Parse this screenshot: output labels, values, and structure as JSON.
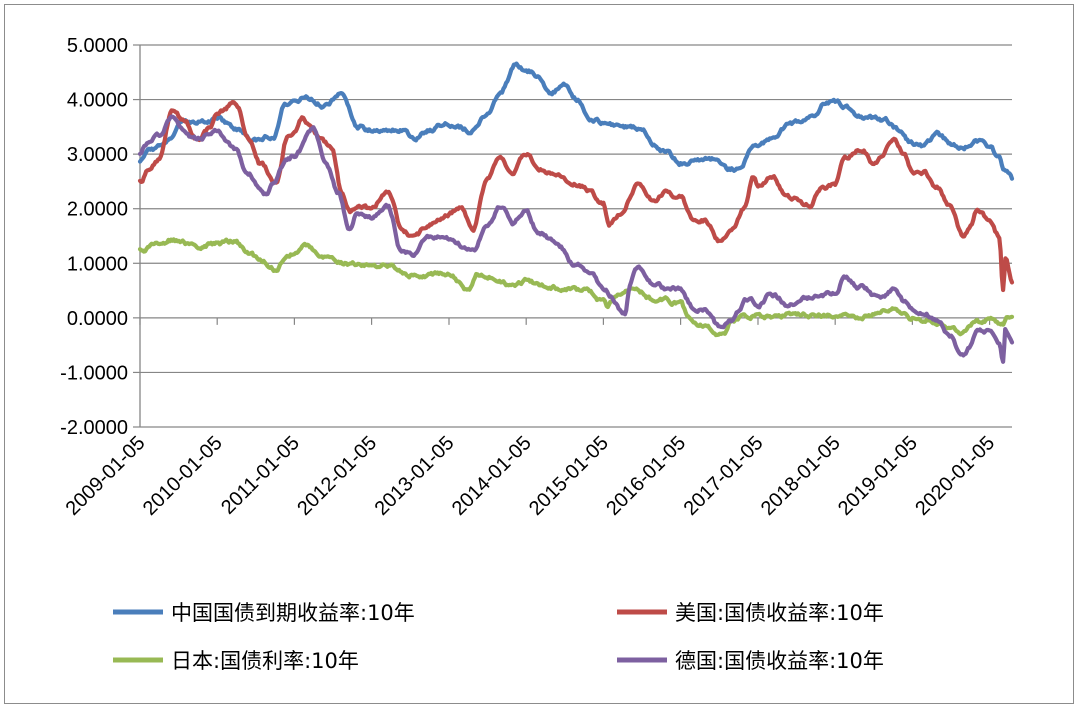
{
  "chart_data": {
    "type": "line",
    "title": "",
    "xlabel": "",
    "ylabel": "",
    "ylim": [
      -2,
      5
    ],
    "yticks": [
      "5.0000",
      "4.0000",
      "3.0000",
      "2.0000",
      "1.0000",
      "0.0000",
      "-1.0000",
      "-2.0000"
    ],
    "xlim": [
      "2009-01-05",
      "2020-04-20"
    ],
    "xticks": [
      "2009-01-05",
      "2010-01-05",
      "2011-01-05",
      "2012-01-05",
      "2013-01-05",
      "2014-01-05",
      "2015-01-05",
      "2016-01-05",
      "2017-01-05",
      "2018-01-05",
      "2019-01-05",
      "2020-01-05"
    ],
    "grid": true,
    "legend_position": "bottom",
    "series": [
      {
        "name": "中国国债到期收益率:10年",
        "color": "#4a7ebb",
        "points": [
          [
            "2009-01-05",
            2.85
          ],
          [
            "2009-03-01",
            3.05
          ],
          [
            "2009-06-01",
            3.25
          ],
          [
            "2009-08-01",
            3.55
          ],
          [
            "2009-11-01",
            3.6
          ],
          [
            "2010-01-05",
            3.65
          ],
          [
            "2010-04-01",
            3.45
          ],
          [
            "2010-07-01",
            3.25
          ],
          [
            "2010-10-01",
            3.35
          ],
          [
            "2010-11-20",
            3.95
          ],
          [
            "2011-01-05",
            3.95
          ],
          [
            "2011-03-01",
            4.05
          ],
          [
            "2011-06-01",
            3.9
          ],
          [
            "2011-08-25",
            4.1
          ],
          [
            "2011-11-01",
            3.5
          ],
          [
            "2012-01-05",
            3.45
          ],
          [
            "2012-04-01",
            3.45
          ],
          [
            "2012-06-01",
            3.45
          ],
          [
            "2012-07-15",
            3.3
          ],
          [
            "2012-10-01",
            3.45
          ],
          [
            "2013-01-05",
            3.55
          ],
          [
            "2013-05-01",
            3.45
          ],
          [
            "2013-07-01",
            3.7
          ],
          [
            "2013-09-01",
            4.1
          ],
          [
            "2013-11-20",
            4.65
          ],
          [
            "2014-01-05",
            4.55
          ],
          [
            "2014-03-01",
            4.45
          ],
          [
            "2014-05-01",
            4.15
          ],
          [
            "2014-07-01",
            4.25
          ],
          [
            "2014-09-01",
            4.0
          ],
          [
            "2014-11-01",
            3.7
          ],
          [
            "2015-01-05",
            3.6
          ],
          [
            "2015-04-01",
            3.5
          ],
          [
            "2015-07-01",
            3.5
          ],
          [
            "2015-09-01",
            3.2
          ],
          [
            "2015-11-01",
            3.05
          ],
          [
            "2016-01-05",
            2.85
          ],
          [
            "2016-04-01",
            2.9
          ],
          [
            "2016-07-01",
            2.9
          ],
          [
            "2016-08-15",
            2.75
          ],
          [
            "2016-10-20",
            2.7
          ],
          [
            "2016-12-01",
            3.1
          ],
          [
            "2017-01-05",
            3.15
          ],
          [
            "2017-04-01",
            3.35
          ],
          [
            "2017-06-01",
            3.55
          ],
          [
            "2017-08-01",
            3.6
          ],
          [
            "2017-10-01",
            3.75
          ],
          [
            "2017-11-20",
            3.95
          ],
          [
            "2018-01-05",
            3.95
          ],
          [
            "2018-03-01",
            3.85
          ],
          [
            "2018-06-01",
            3.65
          ],
          [
            "2018-09-01",
            3.6
          ],
          [
            "2018-11-01",
            3.45
          ],
          [
            "2019-01-05",
            3.2
          ],
          [
            "2019-03-01",
            3.15
          ],
          [
            "2019-05-01",
            3.35
          ],
          [
            "2019-07-01",
            3.2
          ],
          [
            "2019-09-01",
            3.1
          ],
          [
            "2019-11-01",
            3.25
          ],
          [
            "2020-01-05",
            3.15
          ],
          [
            "2020-02-15",
            2.95
          ],
          [
            "2020-03-15",
            2.7
          ],
          [
            "2020-04-20",
            2.55
          ]
        ]
      },
      {
        "name": "美国:国债收益率:10年",
        "color": "#be4b48",
        "points": [
          [
            "2009-01-05",
            2.5
          ],
          [
            "2009-02-15",
            2.7
          ],
          [
            "2009-04-01",
            2.9
          ],
          [
            "2009-06-10",
            3.85
          ],
          [
            "2009-08-01",
            3.6
          ],
          [
            "2009-10-01",
            3.3
          ],
          [
            "2009-12-01",
            3.5
          ],
          [
            "2010-01-05",
            3.75
          ],
          [
            "2010-04-05",
            3.95
          ],
          [
            "2010-06-01",
            3.3
          ],
          [
            "2010-08-01",
            2.8
          ],
          [
            "2010-10-10",
            2.45
          ],
          [
            "2010-12-01",
            3.3
          ],
          [
            "2011-01-05",
            3.35
          ],
          [
            "2011-02-10",
            3.65
          ],
          [
            "2011-05-01",
            3.3
          ],
          [
            "2011-07-01",
            3.1
          ],
          [
            "2011-08-15",
            2.3
          ],
          [
            "2011-10-01",
            1.95
          ],
          [
            "2011-12-01",
            2.0
          ],
          [
            "2012-01-05",
            1.95
          ],
          [
            "2012-03-20",
            2.35
          ],
          [
            "2012-06-01",
            1.55
          ],
          [
            "2012-07-25",
            1.45
          ],
          [
            "2012-10-01",
            1.7
          ],
          [
            "2013-01-05",
            1.9
          ],
          [
            "2013-03-01",
            2.0
          ],
          [
            "2013-05-01",
            1.65
          ],
          [
            "2013-07-01",
            2.5
          ],
          [
            "2013-09-05",
            2.95
          ],
          [
            "2013-11-01",
            2.65
          ],
          [
            "2014-01-05",
            3.0
          ],
          [
            "2014-03-01",
            2.75
          ],
          [
            "2014-06-01",
            2.6
          ],
          [
            "2014-09-01",
            2.5
          ],
          [
            "2014-11-01",
            2.35
          ],
          [
            "2015-01-05",
            2.1
          ],
          [
            "2015-02-01",
            1.7
          ],
          [
            "2015-04-01",
            1.95
          ],
          [
            "2015-06-10",
            2.45
          ],
          [
            "2015-09-01",
            2.15
          ],
          [
            "2015-11-01",
            2.3
          ],
          [
            "2016-01-05",
            2.2
          ],
          [
            "2016-03-01",
            1.8
          ],
          [
            "2016-05-01",
            1.8
          ],
          [
            "2016-07-05",
            1.4
          ],
          [
            "2016-09-01",
            1.6
          ],
          [
            "2016-11-01",
            2.0
          ],
          [
            "2016-12-15",
            2.6
          ],
          [
            "2017-01-05",
            2.45
          ],
          [
            "2017-03-10",
            2.6
          ],
          [
            "2017-06-01",
            2.2
          ],
          [
            "2017-09-08",
            2.05
          ],
          [
            "2017-11-01",
            2.35
          ],
          [
            "2018-01-05",
            2.45
          ],
          [
            "2018-02-20",
            2.9
          ],
          [
            "2018-05-15",
            3.1
          ],
          [
            "2018-07-01",
            2.85
          ],
          [
            "2018-10-10",
            3.2
          ],
          [
            "2018-12-01",
            2.95
          ],
          [
            "2019-01-05",
            2.65
          ],
          [
            "2019-03-01",
            2.65
          ],
          [
            "2019-05-01",
            2.4
          ],
          [
            "2019-07-01",
            2.05
          ],
          [
            "2019-09-01",
            1.5
          ],
          [
            "2019-10-01",
            1.6
          ],
          [
            "2019-11-08",
            1.95
          ],
          [
            "2020-01-05",
            1.8
          ],
          [
            "2020-02-20",
            1.5
          ],
          [
            "2020-03-09",
            0.55
          ],
          [
            "2020-03-20",
            1.1
          ],
          [
            "2020-04-20",
            0.65
          ]
        ]
      },
      {
        "name": "日本:国债利率:10年",
        "color": "#98b954",
        "points": [
          [
            "2009-01-05",
            1.25
          ],
          [
            "2009-06-01",
            1.45
          ],
          [
            "2009-10-01",
            1.3
          ],
          [
            "2010-01-05",
            1.35
          ],
          [
            "2010-04-01",
            1.4
          ],
          [
            "2010-06-01",
            1.2
          ],
          [
            "2010-08-01",
            1.05
          ],
          [
            "2010-10-05",
            0.9
          ],
          [
            "2010-12-01",
            1.15
          ],
          [
            "2011-01-05",
            1.2
          ],
          [
            "2011-03-01",
            1.3
          ],
          [
            "2011-06-01",
            1.15
          ],
          [
            "2011-09-01",
            1.0
          ],
          [
            "2011-12-01",
            1.0
          ],
          [
            "2012-01-05",
            0.98
          ],
          [
            "2012-04-01",
            0.95
          ],
          [
            "2012-07-01",
            0.8
          ],
          [
            "2012-10-01",
            0.78
          ],
          [
            "2013-01-05",
            0.8
          ],
          [
            "2013-04-05",
            0.55
          ],
          [
            "2013-05-20",
            0.85
          ],
          [
            "2013-08-01",
            0.78
          ],
          [
            "2013-11-01",
            0.6
          ],
          [
            "2014-01-05",
            0.68
          ],
          [
            "2014-04-01",
            0.6
          ],
          [
            "2014-07-01",
            0.55
          ],
          [
            "2014-10-01",
            0.48
          ],
          [
            "2015-01-05",
            0.32
          ],
          [
            "2015-01-20",
            0.2
          ],
          [
            "2015-03-01",
            0.4
          ],
          [
            "2015-06-10",
            0.5
          ],
          [
            "2015-09-01",
            0.35
          ],
          [
            "2015-12-01",
            0.28
          ],
          [
            "2016-01-05",
            0.25
          ],
          [
            "2016-02-10",
            0.0
          ],
          [
            "2016-04-01",
            -0.1
          ],
          [
            "2016-07-27",
            -0.28
          ],
          [
            "2016-09-01",
            -0.05
          ],
          [
            "2016-11-01",
            0.0
          ],
          [
            "2017-01-05",
            0.05
          ],
          [
            "2017-04-01",
            0.03
          ],
          [
            "2017-07-01",
            0.08
          ],
          [
            "2017-10-01",
            0.06
          ],
          [
            "2018-01-05",
            0.06
          ],
          [
            "2018-05-01",
            0.05
          ],
          [
            "2018-08-01",
            0.1
          ],
          [
            "2018-10-15",
            0.15
          ],
          [
            "2019-01-05",
            0.0
          ],
          [
            "2019-05-01",
            -0.05
          ],
          [
            "2019-09-01",
            -0.25
          ],
          [
            "2019-11-01",
            -0.1
          ],
          [
            "2020-01-05",
            0.0
          ],
          [
            "2020-03-10",
            -0.1
          ],
          [
            "2020-03-25",
            0.08
          ],
          [
            "2020-04-20",
            0.02
          ]
        ]
      },
      {
        "name": "德国:国债收益率:10年",
        "color": "#7d60a0",
        "points": [
          [
            "2009-01-05",
            3.0
          ],
          [
            "2009-02-01",
            3.2
          ],
          [
            "2009-04-01",
            3.35
          ],
          [
            "2009-06-10",
            3.7
          ],
          [
            "2009-08-01",
            3.4
          ],
          [
            "2009-10-01",
            3.25
          ],
          [
            "2009-12-01",
            3.35
          ],
          [
            "2010-01-05",
            3.4
          ],
          [
            "2010-04-01",
            3.1
          ],
          [
            "2010-06-01",
            2.6
          ],
          [
            "2010-08-25",
            2.25
          ],
          [
            "2010-10-01",
            2.45
          ],
          [
            "2010-12-01",
            2.9
          ],
          [
            "2011-01-05",
            2.95
          ],
          [
            "2011-04-05",
            3.45
          ],
          [
            "2011-06-01",
            2.9
          ],
          [
            "2011-08-01",
            2.3
          ],
          [
            "2011-09-22",
            1.65
          ],
          [
            "2011-11-01",
            1.95
          ],
          [
            "2012-01-05",
            1.85
          ],
          [
            "2012-03-20",
            2.05
          ],
          [
            "2012-06-01",
            1.2
          ],
          [
            "2012-07-23",
            1.15
          ],
          [
            "2012-10-01",
            1.5
          ],
          [
            "2013-01-05",
            1.45
          ],
          [
            "2013-05-01",
            1.2
          ],
          [
            "2013-07-01",
            1.65
          ],
          [
            "2013-09-10",
            2.05
          ],
          [
            "2013-11-01",
            1.7
          ],
          [
            "2014-01-05",
            1.95
          ],
          [
            "2014-03-01",
            1.6
          ],
          [
            "2014-06-01",
            1.35
          ],
          [
            "2014-09-01",
            0.95
          ],
          [
            "2014-11-01",
            0.8
          ],
          [
            "2015-01-05",
            0.55
          ],
          [
            "2015-04-17",
            0.08
          ],
          [
            "2015-05-10",
            0.6
          ],
          [
            "2015-06-10",
            0.95
          ],
          [
            "2015-09-01",
            0.65
          ],
          [
            "2015-11-01",
            0.55
          ],
          [
            "2016-01-05",
            0.55
          ],
          [
            "2016-03-01",
            0.2
          ],
          [
            "2016-05-01",
            0.15
          ],
          [
            "2016-07-08",
            -0.18
          ],
          [
            "2016-09-01",
            -0.05
          ],
          [
            "2016-11-15",
            0.35
          ],
          [
            "2017-01-05",
            0.25
          ],
          [
            "2017-03-10",
            0.45
          ],
          [
            "2017-06-01",
            0.25
          ],
          [
            "2017-09-01",
            0.35
          ],
          [
            "2017-11-01",
            0.4
          ],
          [
            "2018-01-05",
            0.45
          ],
          [
            "2018-02-15",
            0.75
          ],
          [
            "2018-05-01",
            0.55
          ],
          [
            "2018-08-01",
            0.35
          ],
          [
            "2018-10-10",
            0.55
          ],
          [
            "2018-12-01",
            0.3
          ],
          [
            "2019-01-05",
            0.2
          ],
          [
            "2019-03-01",
            0.1
          ],
          [
            "2019-05-01",
            -0.05
          ],
          [
            "2019-07-01",
            -0.35
          ],
          [
            "2019-08-28",
            -0.7
          ],
          [
            "2019-10-01",
            -0.55
          ],
          [
            "2019-11-08",
            -0.25
          ],
          [
            "2020-01-05",
            -0.25
          ],
          [
            "2020-02-20",
            -0.45
          ],
          [
            "2020-03-09",
            -0.85
          ],
          [
            "2020-03-19",
            -0.25
          ],
          [
            "2020-04-20",
            -0.45
          ]
        ]
      }
    ]
  }
}
